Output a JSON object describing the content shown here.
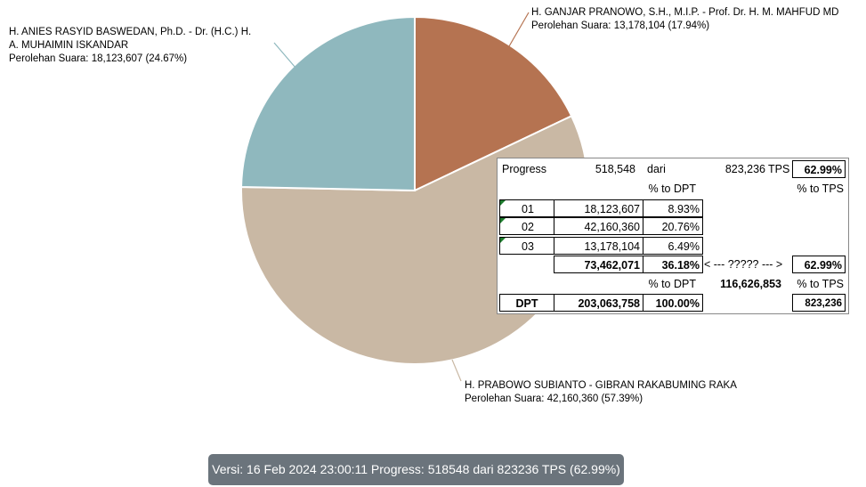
{
  "chart_data": {
    "type": "pie",
    "slices": [
      {
        "name_line1": "H. GANJAR PRANOWO, S.H., M.I.P. - Prof. Dr. H. M. MAHFUD MD",
        "name_line2": "",
        "votes_text": "Perolehan Suara: 13,178,104 (17.94%)",
        "value": 13178104,
        "percent": 17.94,
        "color": "#b57351"
      },
      {
        "name_line1": "H. PRABOWO SUBIANTO - GIBRAN RAKABUMING RAKA",
        "name_line2": "",
        "votes_text": "Perolehan Suara: 42,160,360 (57.39%)",
        "value": 42160360,
        "percent": 57.39,
        "color": "#c9b8a4"
      },
      {
        "name_line1": "H. ANIES RASYID BASWEDAN, Ph.D. - Dr. (H.C.) H.",
        "name_line2": "A. MUHAIMIN ISKANDAR",
        "votes_text": "Perolehan Suara: 18,123,607 (24.67%)",
        "value": 18123607,
        "percent": 24.67,
        "color": "#8fb8be"
      }
    ]
  },
  "table": {
    "progress_label": "Progress",
    "progress_count": "518,548",
    "dari": "dari",
    "tps_total": "823,236",
    "tps_label": "TPS",
    "progress_pct": "62.99%",
    "hdr_dpt": "% to DPT",
    "hdr_tps": "% to TPS",
    "rows": [
      {
        "no": "01",
        "votes": "18,123,607",
        "pct": "8.93%"
      },
      {
        "no": "02",
        "votes": "42,160,360",
        "pct": "20.76%"
      },
      {
        "no": "03",
        "votes": "13,178,104",
        "pct": "6.49%"
      }
    ],
    "total_votes": "73,462,071",
    "total_pct": "36.18%",
    "arrow": "< --- ????? --- >",
    "total_tps_pct": "62.99%",
    "hdr_dpt2": "% to DPT",
    "remaining": "116,626,853",
    "hdr_tps2": "% to TPS",
    "dpt_label": "DPT",
    "dpt_value": "203,063,758",
    "dpt_pct": "100.00%",
    "tps_value": "823,236"
  },
  "footer": "Versi: 16 Feb 2024 23:00:11 Progress: 518548 dari 823236 TPS (62.99%)"
}
